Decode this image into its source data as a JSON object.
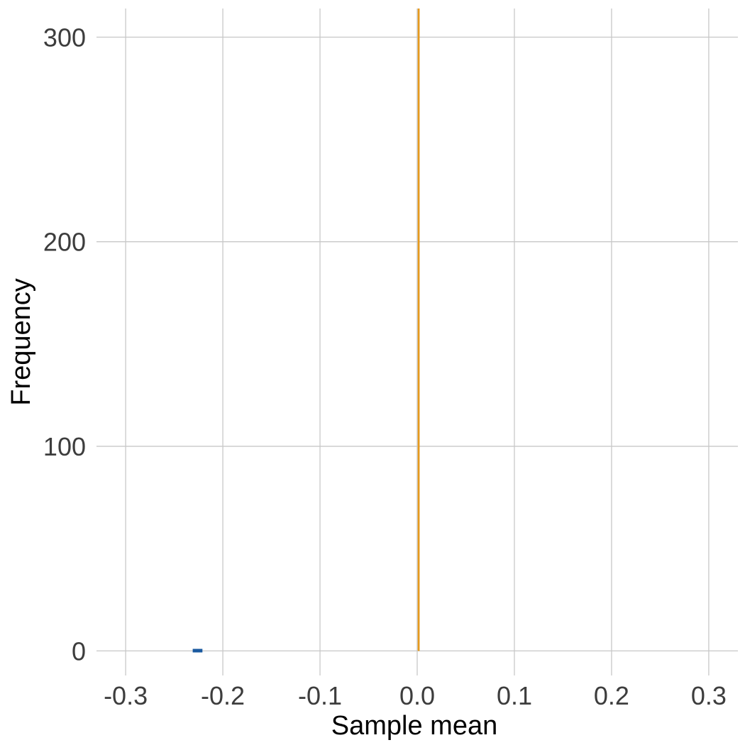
{
  "chart_data": {
    "type": "bar",
    "subtype": "histogram",
    "title": "",
    "xlabel": "Sample mean",
    "ylabel": "Frequency",
    "xlim": [
      -0.33,
      0.33
    ],
    "ylim": [
      -12,
      314
    ],
    "x_ticks": [
      -0.3,
      -0.2,
      -0.1,
      0.0,
      0.1,
      0.2,
      0.3
    ],
    "x_tick_labels": [
      "-0.3",
      "-0.2",
      "-0.1",
      "0.0",
      "0.1",
      "0.2",
      "0.3"
    ],
    "y_ticks": [
      0,
      100,
      200,
      300
    ],
    "y_tick_labels": [
      "0",
      "100",
      "200",
      "300"
    ],
    "grid": true,
    "bins": [
      {
        "x_start": -0.231,
        "x_end": -0.221,
        "count": 1,
        "color": "#1a5aa0"
      },
      {
        "x_start": 0.0005,
        "x_end": 0.0025,
        "count": 314,
        "color": "#e69a1e"
      }
    ],
    "colors": {
      "background": "#ffffff",
      "grid": "#c8c8c8"
    }
  }
}
